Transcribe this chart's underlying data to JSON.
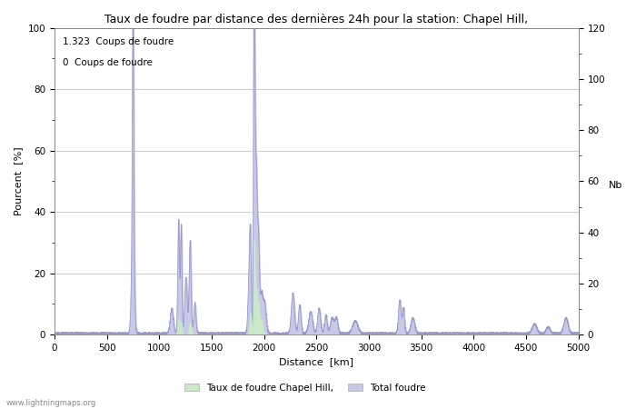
{
  "title": "Taux de foudre par distance des dernières 24h pour la station: Chapel Hill,",
  "xlabel": "Distance  [km]",
  "ylabel_left": "Pourcent  [%]",
  "ylabel_right": "Nb",
  "annotation1": "1.323  Coups de foudre",
  "annotation2": "0  Coups de foudre",
  "watermark": "www.lightningmaps.org",
  "legend_label1": "Taux de foudre Chapel Hill,",
  "legend_label2": "Total foudre",
  "xlim": [
    0,
    5000
  ],
  "ylim_left": [
    0,
    100
  ],
  "ylim_right": [
    0,
    120
  ],
  "yticks_left": [
    0,
    20,
    40,
    60,
    80,
    100
  ],
  "yticks_right": [
    0,
    20,
    40,
    60,
    80,
    100,
    120
  ],
  "xticks": [
    0,
    500,
    1000,
    1500,
    2000,
    2500,
    3000,
    3500,
    4000,
    4500,
    5000
  ],
  "line_color": "#9999cc",
  "fill_blue_color": "#c8c8e8",
  "fill_green_color": "#c8e8c8",
  "bg_color": "#ffffff",
  "grid_color": "#cccccc",
  "figsize": [
    7.0,
    4.5
  ],
  "dpi": 100
}
